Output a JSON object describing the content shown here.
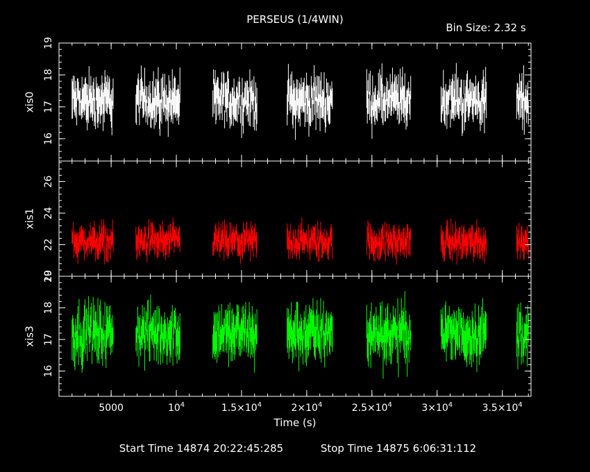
{
  "chart_data": {
    "type": "line",
    "title": "PERSEUS (1/4WIN)",
    "bin_size": "Bin Size: 2.32 s",
    "xlabel": "Time (s)",
    "x_ticks": [
      {
        "value": 5000,
        "label": "5000",
        "sup": ""
      },
      {
        "value": 10000,
        "label": "10",
        "sup": "4"
      },
      {
        "value": 15000,
        "label": "1.5×10",
        "sup": "4"
      },
      {
        "value": 20000,
        "label": "2×10",
        "sup": "4"
      },
      {
        "value": 25000,
        "label": "2.5×10",
        "sup": "4"
      },
      {
        "value": 30000,
        "label": "3×10",
        "sup": "4"
      },
      {
        "value": 35000,
        "label": "3.5×10",
        "sup": "4"
      }
    ],
    "xlim": [
      1000,
      37200
    ],
    "segments": [
      [
        2000,
        5150
      ],
      [
        6900,
        10300
      ],
      [
        12800,
        16200
      ],
      [
        18500,
        22000
      ],
      [
        24600,
        28000
      ],
      [
        30300,
        33800
      ],
      [
        36100,
        37000
      ]
    ],
    "start_time": "Start Time 14874 20:22:45:285",
    "stop_time": "Stop Time 14875  6:06:31:112",
    "panels": [
      {
        "ylabel": "xis0",
        "color": "#ffffff",
        "ylim": [
          15.3,
          19
        ],
        "yticks": [
          "16",
          "17",
          "18",
          "19"
        ],
        "ytick_values": [
          16,
          17,
          18,
          19
        ],
        "mean": 17.2,
        "spread": 0.45
      },
      {
        "ylabel": "xis1",
        "color": "#ff0000",
        "ylim": [
          20,
          27.3
        ],
        "yticks": [
          "20",
          "22",
          "24",
          "26"
        ],
        "ytick_values": [
          20,
          22,
          24,
          26
        ],
        "mean": 22.2,
        "spread": 0.6
      },
      {
        "ylabel": "xis3",
        "color": "#00ff00",
        "ylim": [
          15.2,
          19
        ],
        "yticks": [
          "16",
          "17",
          "18",
          "19"
        ],
        "ytick_values": [
          16,
          17,
          18,
          19
        ],
        "mean": 17.2,
        "spread": 0.5
      }
    ]
  }
}
